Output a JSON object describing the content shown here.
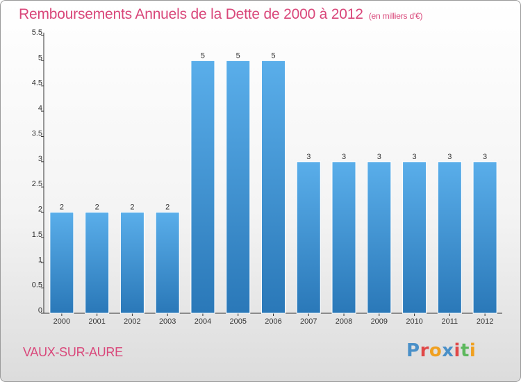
{
  "title": "Remboursements Annuels de la Dette de 2000 à 2012",
  "title_unit": "(en milliers d'€)",
  "location": "VAUX-SUR-AURE",
  "logo": {
    "text": "Proxiti",
    "colors": [
      "#4a90c8",
      "#e04848",
      "#f0a020",
      "#4a90c8",
      "#e04848",
      "#5cb85c",
      "#f0a020"
    ]
  },
  "chart_data": {
    "type": "bar",
    "categories": [
      "2000",
      "2001",
      "2002",
      "2003",
      "2004",
      "2005",
      "2006",
      "2007",
      "2008",
      "2009",
      "2010",
      "2011",
      "2012"
    ],
    "values": [
      2,
      2,
      2,
      2,
      5,
      5,
      5,
      3,
      3,
      3,
      3,
      3,
      3
    ],
    "data_labels": [
      "2",
      "2",
      "2",
      "2",
      "5",
      "5",
      "5",
      "3",
      "3",
      "3",
      "3",
      "3",
      "3"
    ],
    "ylim": [
      0,
      5.5
    ],
    "yticks": [
      0,
      0.5,
      1,
      1.5,
      2,
      2.5,
      3,
      3.5,
      4,
      4.5,
      5,
      5.5
    ],
    "ytick_labels": [
      "0",
      "0.5",
      "1",
      "1.5",
      "2",
      "2.5",
      "3",
      "3.5",
      "4",
      "4.5",
      "5",
      "5.5"
    ],
    "grid": false,
    "bar_color": "#4a9fdc"
  }
}
